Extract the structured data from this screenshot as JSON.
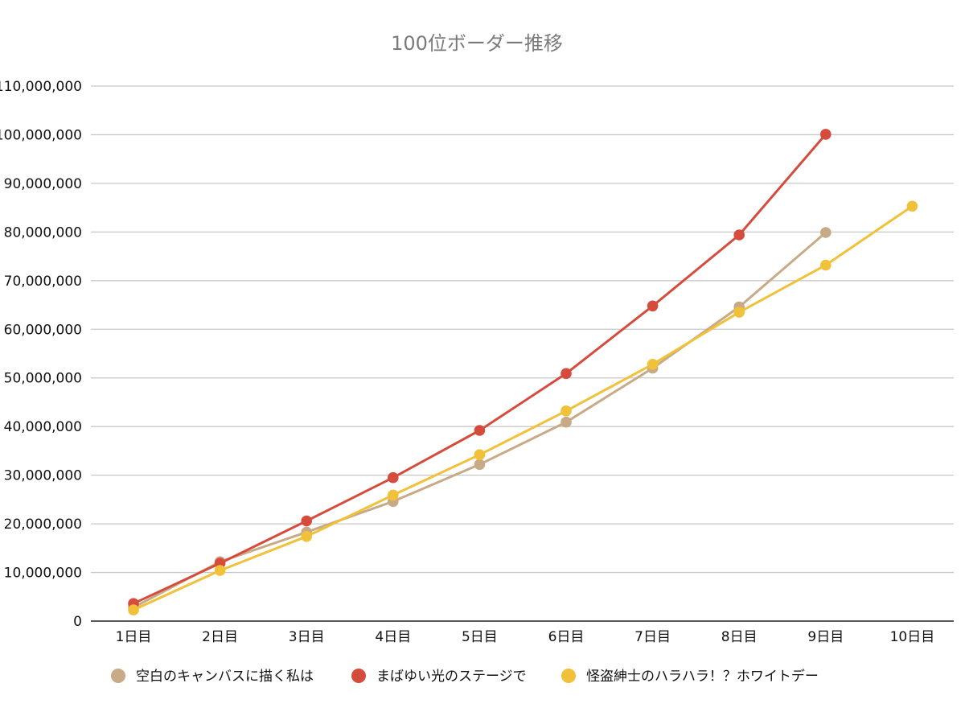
{
  "chart_data": {
    "type": "line",
    "title": "100位ボーダー推移",
    "xlabel": "",
    "ylabel": "",
    "categories": [
      "1日目",
      "2日目",
      "3日目",
      "4日目",
      "5日目",
      "6日目",
      "7日目",
      "8日目",
      "9日目",
      "10日目"
    ],
    "ylim": [
      0,
      110000000
    ],
    "yticks": [
      0,
      10000000,
      20000000,
      30000000,
      40000000,
      50000000,
      60000000,
      70000000,
      80000000,
      90000000,
      100000000,
      110000000
    ],
    "ytick_labels": [
      "0",
      "10,000,000",
      "20,000,000",
      "30,000,000",
      "40,000,000",
      "50,000,000",
      "60,000,000",
      "70,000,000",
      "80,000,000",
      "90,000,000",
      "100,000,000",
      "110,000,000"
    ],
    "grid": true,
    "legend_position": "bottom",
    "series": [
      {
        "name": "空白のキャンバスに描く私は",
        "color": "#c8aa86",
        "values": [
          2800000,
          12200000,
          18300000,
          24600000,
          32200000,
          40900000,
          52000000,
          64600000,
          79900000,
          null
        ]
      },
      {
        "name": "まばゆい光のステージで",
        "color": "#d64c3c",
        "values": [
          3600000,
          11900000,
          20600000,
          29500000,
          39200000,
          50900000,
          64800000,
          79400000,
          100100000,
          null
        ]
      },
      {
        "name": "怪盗紳士のハラハラ！？ホワイトデー",
        "color": "#f0c139",
        "values": [
          2300000,
          10400000,
          17400000,
          25900000,
          34200000,
          43200000,
          52800000,
          63500000,
          73200000,
          85300000
        ]
      }
    ]
  }
}
